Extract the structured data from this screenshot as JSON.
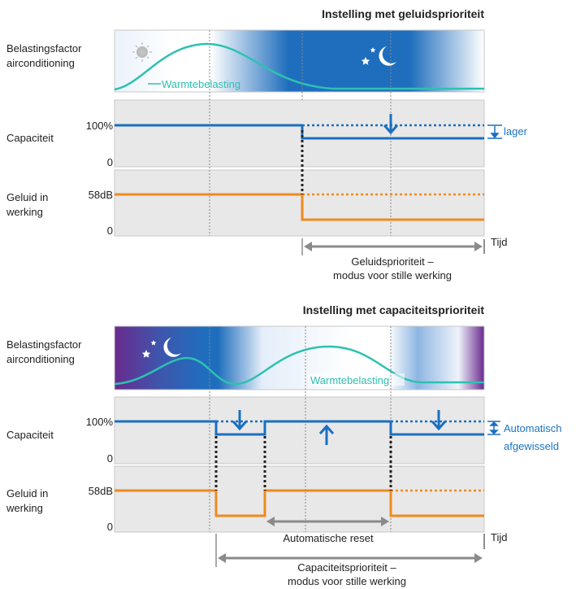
{
  "colors": {
    "blue": "#1a6fc0",
    "orange": "#f08a1e",
    "teal": "#2dc1b2",
    "gray_panel": "#e8e8e8",
    "arrow_gray": "#8a8a8a",
    "night": "#1f6ebd",
    "purple": "#6a2a8e"
  },
  "top": {
    "title": "Instelling met geluidsprioriteit",
    "load_label_1": "Belastingsfactor",
    "load_label_2": "airconditioning",
    "heat_label": "Warmtebelasting",
    "capacity_label": "Capaciteit",
    "tick_100": "100%",
    "tick_0a": "0",
    "sound_label_1": "Geluid in",
    "sound_label_2": "werking",
    "tick_58": "58dB",
    "tick_0b": "0",
    "lower_label": "lager",
    "time_label": "Tijd",
    "mode_line_1": "Geluidsprioriteit –",
    "mode_line_2": "modus voor stille werking"
  },
  "bottom": {
    "title": "Instelling met capaciteitsprioriteit",
    "load_label_1": "Belastingsfactor",
    "load_label_2": "airconditioning",
    "heat_label": "Warmtebelasting",
    "capacity_label": "Capaciteit",
    "tick_100": "100%",
    "tick_0a": "0",
    "sound_label_1": "Geluid in",
    "sound_label_2": "werking",
    "tick_58": "58dB",
    "tick_0b": "0",
    "auto_label_1": "Automatisch",
    "auto_label_2": "afgewisseld",
    "reset_label": "Automatische reset",
    "time_label": "Tijd",
    "mode_line_1": "Capaciteitsprioriteit –",
    "mode_line_2": "modus voor stille werking"
  }
}
